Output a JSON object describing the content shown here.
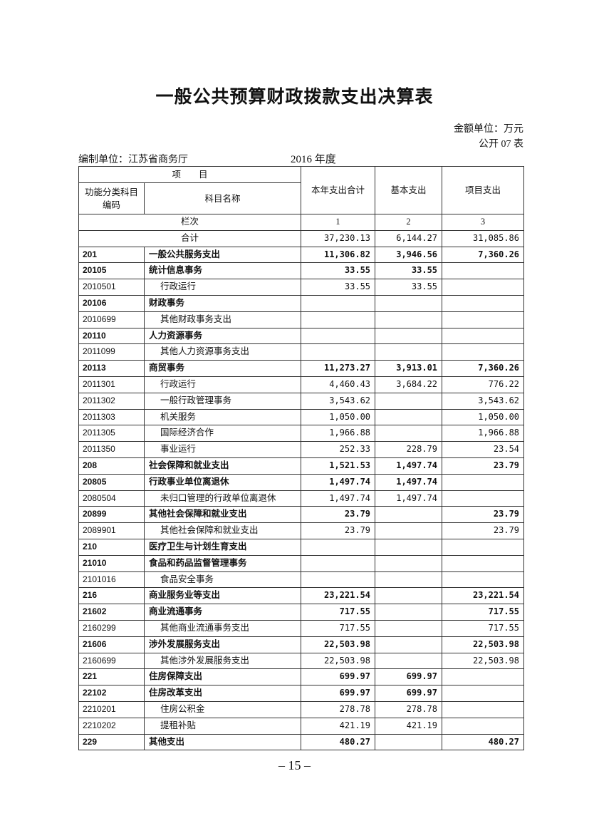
{
  "title": "一般公共预算财政拨款支出决算表",
  "unit": "金额单位：万元",
  "table_no": "公开 07 表",
  "org": "编制单位：江苏省商务厅",
  "year": "2016 年度",
  "header": {
    "item": "项　　目",
    "code": "功能分类科目编码",
    "name": "科目名称",
    "col1": "本年支出合计",
    "col2": "基本支出",
    "col3": "项目支出",
    "seq_label": "栏次",
    "seq": [
      "1",
      "2",
      "3"
    ],
    "total_label": "合计",
    "totals": [
      "37,230.13",
      "6,144.27",
      "31,085.86"
    ]
  },
  "rows": [
    {
      "code": "201",
      "name": "一般公共服务支出",
      "v1": "11,306.82",
      "v2": "3,946.56",
      "v3": "7,360.26",
      "bold": true
    },
    {
      "code": "20105",
      "name": "统计信息事务",
      "v1": "33.55",
      "v2": "33.55",
      "v3": "",
      "bold": true
    },
    {
      "code": "2010501",
      "name": "行政运行",
      "v1": "33.55",
      "v2": "33.55",
      "v3": "",
      "bold": false
    },
    {
      "code": "20106",
      "name": "财政事务",
      "v1": "",
      "v2": "",
      "v3": "",
      "bold": true
    },
    {
      "code": "2010699",
      "name": "其他财政事务支出",
      "v1": "",
      "v2": "",
      "v3": "",
      "bold": false
    },
    {
      "code": "20110",
      "name": "人力资源事务",
      "v1": "",
      "v2": "",
      "v3": "",
      "bold": true
    },
    {
      "code": "2011099",
      "name": "其他人力资源事务支出",
      "v1": "",
      "v2": "",
      "v3": "",
      "bold": false
    },
    {
      "code": "20113",
      "name": "商贸事务",
      "v1": "11,273.27",
      "v2": "3,913.01",
      "v3": "7,360.26",
      "bold": true
    },
    {
      "code": "2011301",
      "name": "行政运行",
      "v1": "4,460.43",
      "v2": "3,684.22",
      "v3": "776.22",
      "bold": false
    },
    {
      "code": "2011302",
      "name": "一般行政管理事务",
      "v1": "3,543.62",
      "v2": "",
      "v3": "3,543.62",
      "bold": false
    },
    {
      "code": "2011303",
      "name": "机关服务",
      "v1": "1,050.00",
      "v2": "",
      "v3": "1,050.00",
      "bold": false
    },
    {
      "code": "2011305",
      "name": "国际经济合作",
      "v1": "1,966.88",
      "v2": "",
      "v3": "1,966.88",
      "bold": false
    },
    {
      "code": "2011350",
      "name": "事业运行",
      "v1": "252.33",
      "v2": "228.79",
      "v3": "23.54",
      "bold": false
    },
    {
      "code": "208",
      "name": "社会保障和就业支出",
      "v1": "1,521.53",
      "v2": "1,497.74",
      "v3": "23.79",
      "bold": true
    },
    {
      "code": "20805",
      "name": "行政事业单位离退休",
      "v1": "1,497.74",
      "v2": "1,497.74",
      "v3": "",
      "bold": true
    },
    {
      "code": "2080504",
      "name": "未归口管理的行政单位离退休",
      "v1": "1,497.74",
      "v2": "1,497.74",
      "v3": "",
      "bold": false
    },
    {
      "code": "20899",
      "name": "其他社会保障和就业支出",
      "v1": "23.79",
      "v2": "",
      "v3": "23.79",
      "bold": true
    },
    {
      "code": "2089901",
      "name": "其他社会保障和就业支出",
      "v1": "23.79",
      "v2": "",
      "v3": "23.79",
      "bold": false
    },
    {
      "code": "210",
      "name": "医疗卫生与计划生育支出",
      "v1": "",
      "v2": "",
      "v3": "",
      "bold": true
    },
    {
      "code": "21010",
      "name": "食品和药品监督管理事务",
      "v1": "",
      "v2": "",
      "v3": "",
      "bold": true
    },
    {
      "code": "2101016",
      "name": "食品安全事务",
      "v1": "",
      "v2": "",
      "v3": "",
      "bold": false
    },
    {
      "code": "216",
      "name": "商业服务业等支出",
      "v1": "23,221.54",
      "v2": "",
      "v3": "23,221.54",
      "bold": true
    },
    {
      "code": "21602",
      "name": "商业流通事务",
      "v1": "717.55",
      "v2": "",
      "v3": "717.55",
      "bold": true
    },
    {
      "code": "2160299",
      "name": "其他商业流通事务支出",
      "v1": "717.55",
      "v2": "",
      "v3": "717.55",
      "bold": false
    },
    {
      "code": "21606",
      "name": "涉外发展服务支出",
      "v1": "22,503.98",
      "v2": "",
      "v3": "22,503.98",
      "bold": true
    },
    {
      "code": "2160699",
      "name": "其他涉外发展服务支出",
      "v1": "22,503.98",
      "v2": "",
      "v3": "22,503.98",
      "bold": false
    },
    {
      "code": "221",
      "name": "住房保障支出",
      "v1": "699.97",
      "v2": "699.97",
      "v3": "",
      "bold": true
    },
    {
      "code": "22102",
      "name": "住房改革支出",
      "v1": "699.97",
      "v2": "699.97",
      "v3": "",
      "bold": true
    },
    {
      "code": "2210201",
      "name": "住房公积金",
      "v1": "278.78",
      "v2": "278.78",
      "v3": "",
      "bold": false
    },
    {
      "code": "2210202",
      "name": "提租补贴",
      "v1": "421.19",
      "v2": "421.19",
      "v3": "",
      "bold": false
    },
    {
      "code": "229",
      "name": "其他支出",
      "v1": "480.27",
      "v2": "",
      "v3": "480.27",
      "bold": true
    }
  ],
  "page_number": "– 15 –"
}
